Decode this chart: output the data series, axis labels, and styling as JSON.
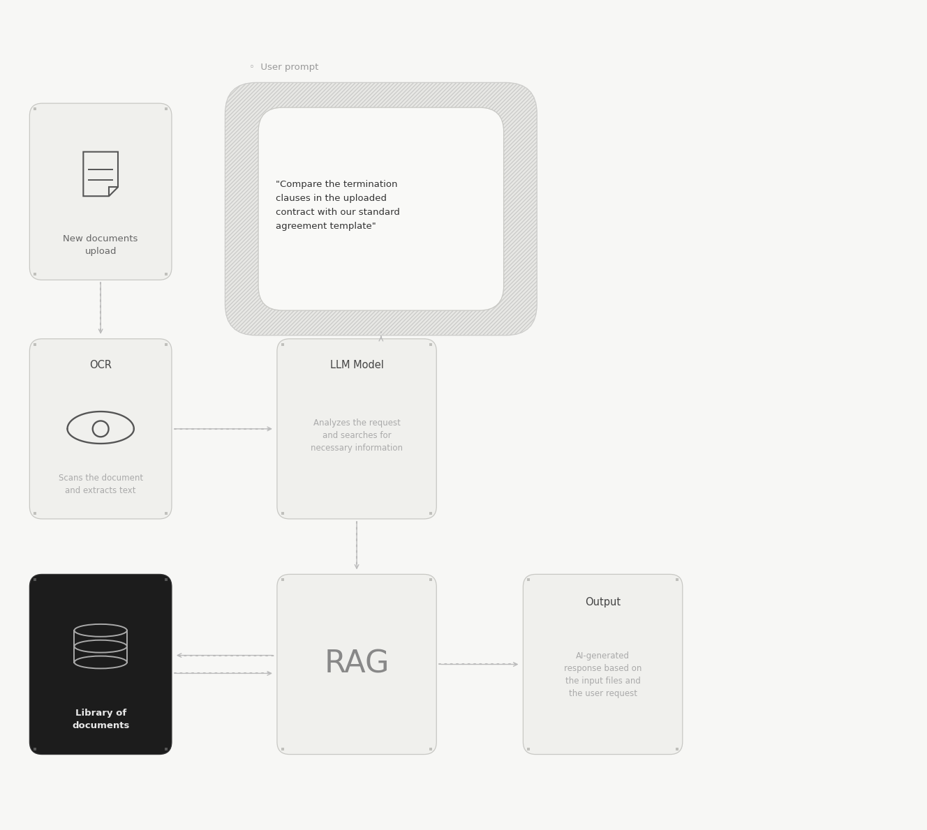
{
  "bg_color": "#f7f7f5",
  "box_face": "#f0f0ed",
  "dark_face": "#1c1c1c",
  "border_color": "#c8c8c4",
  "text_dark": "#444444",
  "text_mid": "#666666",
  "text_gray": "#aaaaaa",
  "text_white": "#e0e0e0",
  "arrow_color": "#bbbbbb",
  "corner_dot": "#c0c0bc",
  "user_prompt_label": "◦  User prompt",
  "user_prompt_text": "\"Compare the termination\nclauses in the uploaded\ncontract with our standard\nagreement template\"",
  "box1_title": "New documents\nupload",
  "box2_title": "OCR",
  "box2_sub": "Scans the document\nand extracts text",
  "box3_title": "LLM Model",
  "box3_sub": "Analyzes the request\nand searches for\nnecessary information",
  "box4_title": "Library of\ndocuments",
  "box5_title": "RAG",
  "box6_title": "Output",
  "box6_sub": "AI-generated\nresponse based on\nthe input files and\nthe user request",
  "fig_w": 13.28,
  "fig_h": 11.9,
  "b1x": 0.38,
  "b1y": 7.9,
  "b1w": 2.05,
  "b1h": 2.55,
  "bux": 3.2,
  "buy": 7.1,
  "buw": 4.5,
  "buh": 3.65,
  "b2x": 0.38,
  "b2y": 4.45,
  "b2w": 2.05,
  "b2h": 2.6,
  "b3x": 3.95,
  "b3y": 4.45,
  "b3w": 2.3,
  "b3h": 2.6,
  "b4x": 0.38,
  "b4y": 1.05,
  "b4w": 2.05,
  "b4h": 2.6,
  "b5x": 3.95,
  "b5y": 1.05,
  "b5w": 2.3,
  "b5h": 2.6,
  "b6x": 7.5,
  "b6y": 1.05,
  "b6w": 2.3,
  "b6h": 2.6
}
